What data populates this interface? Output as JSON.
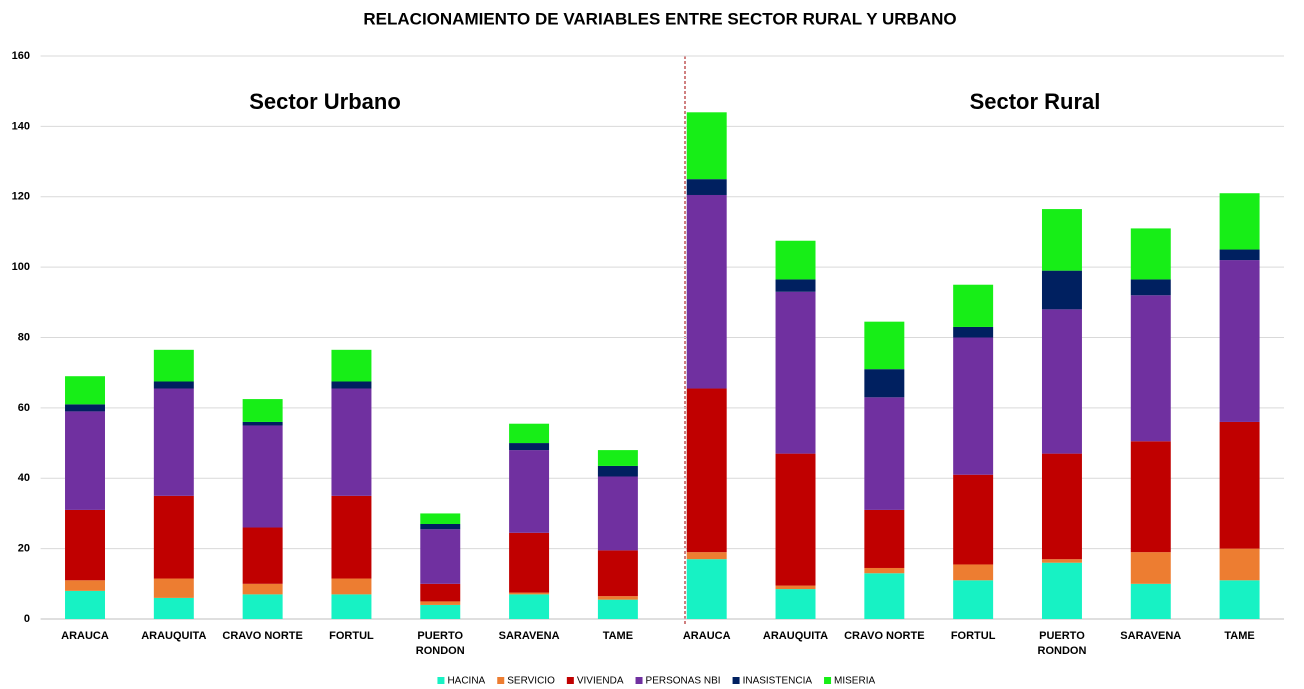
{
  "chart_data": {
    "type": "bar",
    "stacked": true,
    "title": "RELACIONAMIENTO DE VARIABLES ENTRE SECTOR RURAL Y URBANO",
    "annotations": [
      "Sector Urbano",
      "Sector Rural"
    ],
    "categories": [
      "ARAUCA",
      "ARAUQUITA",
      "CRAVO NORTE",
      "FORTUL",
      "PUERTO RONDON",
      "SARAVENA",
      "TAME",
      "ARAUCA",
      "ARAUQUITA",
      "CRAVO NORTE",
      "FORTUL",
      "PUERTO RONDON",
      "SARAVENA",
      "TAME"
    ],
    "series": [
      {
        "name": "HACINA",
        "color": "#17f2c4",
        "values": [
          8,
          6,
          7,
          7,
          4,
          7,
          5.5,
          17,
          8.5,
          13,
          11,
          16,
          10,
          11
        ]
      },
      {
        "name": "SERVICIO",
        "color": "#ed7d31",
        "values": [
          3,
          5.5,
          3,
          4.5,
          1,
          0.5,
          1,
          2,
          1,
          1.5,
          4.5,
          1,
          9,
          9
        ]
      },
      {
        "name": "VIVIENDA",
        "color": "#c00000",
        "values": [
          20,
          23.5,
          16,
          23.5,
          5,
          17,
          13,
          46.5,
          37.5,
          16.5,
          25.5,
          30,
          31.5,
          36
        ]
      },
      {
        "name": "PERSONAS NBI",
        "color": "#7030a0",
        "values": [
          28,
          30.5,
          29,
          30.5,
          15.5,
          23.5,
          21,
          55,
          46,
          32,
          39,
          41,
          41.5,
          46
        ]
      },
      {
        "name": "INASISTENCIA",
        "color": "#002060",
        "values": [
          2,
          2,
          1,
          2,
          1.5,
          2,
          3,
          4.5,
          3.5,
          8,
          3,
          11,
          4.5,
          3
        ]
      },
      {
        "name": "MISERIA",
        "color": "#17ee17",
        "values": [
          8,
          9,
          6.5,
          9,
          3,
          5.5,
          4.5,
          19,
          11,
          13.5,
          12,
          17.5,
          14.5,
          16
        ]
      }
    ],
    "ylim": [
      0,
      160
    ],
    "yticks": [
      0,
      20,
      40,
      60,
      80,
      100,
      120,
      140,
      160
    ],
    "grid": true,
    "legend": "bottom"
  }
}
